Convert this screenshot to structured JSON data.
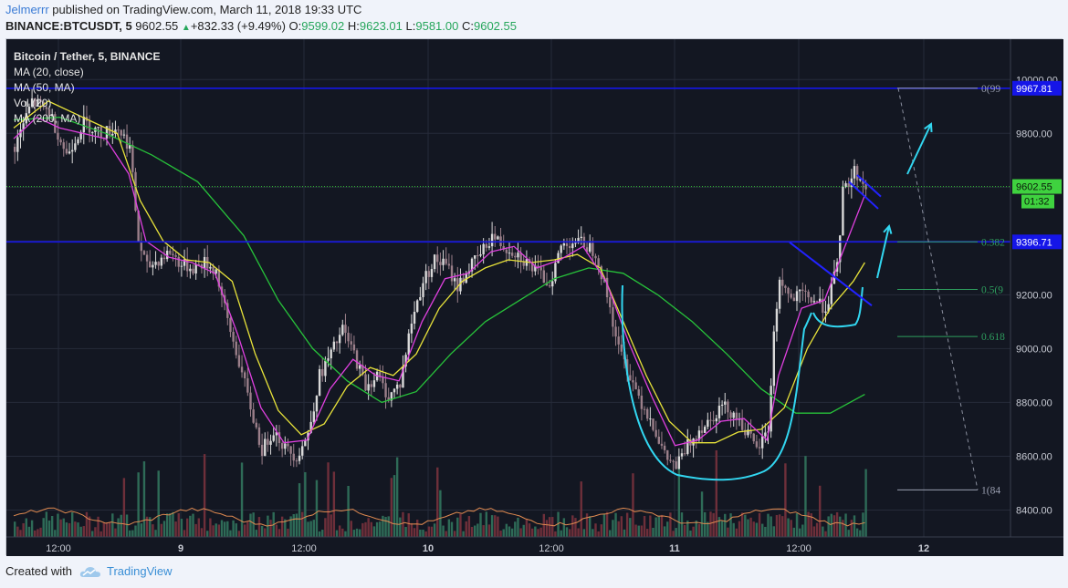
{
  "header": {
    "author": "Jelmerrr",
    "published": " published on TradingView.com, March 11, 2018 19:33 UTC",
    "symbol": "BINANCE:BTCUSDT, 5",
    "last": "9602.55",
    "change_arrow": "▲",
    "change": "+832.33 (+9.49%)",
    "o_label": "O:",
    "o_value": "9599.02",
    "h_label": "H:",
    "h_value": "9623.01",
    "l_label": "L:",
    "l_value": "9581.00",
    "c_label": "C:",
    "c_value": "9602.55"
  },
  "legend": {
    "title": "Bitcoin / Tether, 5, BINANCE",
    "items": [
      "MA (20, close)",
      "MA (50, MA)",
      "Vol (20)",
      "MA (200, MA)"
    ]
  },
  "footer": {
    "created_with": "Created with",
    "brand": "TradingView"
  },
  "colors": {
    "background": "#131722",
    "grid": "#262b3a",
    "up": "#d9d9d9",
    "down": "#9b7f8a",
    "ma20": "#e040e0",
    "ma50": "#e8e33a",
    "ma200": "#27c23a",
    "cup": "#32d6f0",
    "hline": "#1515e8",
    "price_line": "#37c837",
    "fib": "#2e9e5e",
    "vol_ma": "#e08a50"
  },
  "chart_data": {
    "type": "candlestick",
    "symbol": "BTCUSDT",
    "exchange": "BINANCE",
    "timeframe": "5",
    "x_ticks": [
      "12:00",
      "9",
      "12:00",
      "10",
      "12:00",
      "11",
      "12:00",
      "12"
    ],
    "y_ticks": [
      8400,
      8600,
      8800,
      9000,
      9200,
      9400,
      9600,
      9800,
      10000
    ],
    "y_range": [
      8300,
      10150
    ],
    "price_path": [
      [
        0,
        9750
      ],
      [
        3,
        9920
      ],
      [
        6,
        9880
      ],
      [
        9,
        9720
      ],
      [
        12,
        9840
      ],
      [
        15,
        9800
      ],
      [
        18,
        9820
      ],
      [
        20,
        9750
      ],
      [
        21.5,
        9400
      ],
      [
        23,
        9300
      ],
      [
        25,
        9330
      ],
      [
        27,
        9360
      ],
      [
        29,
        9310
      ],
      [
        31,
        9300
      ],
      [
        33,
        9320
      ],
      [
        35,
        9290
      ],
      [
        37,
        9100
      ],
      [
        39,
        8950
      ],
      [
        41,
        8780
      ],
      [
        43,
        8620
      ],
      [
        45,
        8700
      ],
      [
        47,
        8630
      ],
      [
        49,
        8600
      ],
      [
        51,
        8680
      ],
      [
        53,
        8900
      ],
      [
        55,
        8980
      ],
      [
        57,
        9070
      ],
      [
        59,
        8980
      ],
      [
        61,
        8860
      ],
      [
        63,
        8900
      ],
      [
        65,
        8820
      ],
      [
        67,
        8870
      ],
      [
        69,
        9100
      ],
      [
        71,
        9250
      ],
      [
        73,
        9330
      ],
      [
        75,
        9310
      ],
      [
        77,
        9230
      ],
      [
        79,
        9300
      ],
      [
        81,
        9350
      ],
      [
        83,
        9420
      ],
      [
        85,
        9380
      ],
      [
        87,
        9360
      ],
      [
        89,
        9320
      ],
      [
        91,
        9280
      ],
      [
        93,
        9240
      ],
      [
        95,
        9380
      ],
      [
        97,
        9400
      ],
      [
        99,
        9390
      ],
      [
        101,
        9360
      ],
      [
        103,
        9200
      ],
      [
        105,
        9000
      ],
      [
        107,
        8900
      ],
      [
        109,
        8800
      ],
      [
        111,
        8720
      ],
      [
        113,
        8600
      ],
      [
        115,
        8560
      ],
      [
        117,
        8640
      ],
      [
        119,
        8700
      ],
      [
        121,
        8740
      ],
      [
        123,
        8790
      ],
      [
        125,
        8760
      ],
      [
        127,
        8700
      ],
      [
        129,
        8620
      ],
      [
        131,
        8700
      ],
      [
        132,
        9050
      ],
      [
        133,
        9260
      ],
      [
        135,
        9180
      ],
      [
        137,
        9200
      ],
      [
        139,
        9180
      ],
      [
        141,
        9150
      ],
      [
        143,
        9300
      ],
      [
        144,
        9580
      ],
      [
        146,
        9660
      ],
      [
        148,
        9600
      ]
    ],
    "ma20_points": [
      [
        0,
        9780
      ],
      [
        4,
        9860
      ],
      [
        8,
        9820
      ],
      [
        12,
        9800
      ],
      [
        16,
        9780
      ],
      [
        20,
        9650
      ],
      [
        23,
        9400
      ],
      [
        27,
        9340
      ],
      [
        31,
        9320
      ],
      [
        35,
        9280
      ],
      [
        39,
        9050
      ],
      [
        43,
        8780
      ],
      [
        47,
        8650
      ],
      [
        51,
        8660
      ],
      [
        55,
        8850
      ],
      [
        59,
        8960
      ],
      [
        63,
        8900
      ],
      [
        67,
        8880
      ],
      [
        71,
        9100
      ],
      [
        75,
        9260
      ],
      [
        79,
        9280
      ],
      [
        83,
        9360
      ],
      [
        87,
        9380
      ],
      [
        91,
        9300
      ],
      [
        95,
        9330
      ],
      [
        99,
        9380
      ],
      [
        103,
        9250
      ],
      [
        107,
        9020
      ],
      [
        111,
        8820
      ],
      [
        115,
        8640
      ],
      [
        119,
        8660
      ],
      [
        123,
        8730
      ],
      [
        127,
        8740
      ],
      [
        131,
        8660
      ],
      [
        133,
        8900
      ],
      [
        137,
        9150
      ],
      [
        141,
        9180
      ],
      [
        144,
        9350
      ],
      [
        148,
        9570
      ]
    ],
    "ma50_points": [
      [
        0,
        9820
      ],
      [
        6,
        9920
      ],
      [
        12,
        9860
      ],
      [
        18,
        9800
      ],
      [
        22,
        9550
      ],
      [
        26,
        9400
      ],
      [
        30,
        9330
      ],
      [
        34,
        9320
      ],
      [
        38,
        9250
      ],
      [
        42,
        8980
      ],
      [
        46,
        8770
      ],
      [
        50,
        8680
      ],
      [
        54,
        8720
      ],
      [
        58,
        8860
      ],
      [
        62,
        8930
      ],
      [
        66,
        8900
      ],
      [
        70,
        8980
      ],
      [
        74,
        9150
      ],
      [
        78,
        9250
      ],
      [
        82,
        9300
      ],
      [
        86,
        9330
      ],
      [
        90,
        9320
      ],
      [
        94,
        9330
      ],
      [
        98,
        9350
      ],
      [
        102,
        9300
      ],
      [
        106,
        9100
      ],
      [
        110,
        8900
      ],
      [
        114,
        8730
      ],
      [
        118,
        8650
      ],
      [
        122,
        8650
      ],
      [
        126,
        8690
      ],
      [
        130,
        8700
      ],
      [
        134,
        8780
      ],
      [
        138,
        9000
      ],
      [
        142,
        9150
      ],
      [
        146,
        9250
      ],
      [
        148,
        9320
      ]
    ],
    "ma200_points": [
      [
        0,
        9850
      ],
      [
        8,
        9860
      ],
      [
        16,
        9800
      ],
      [
        24,
        9720
      ],
      [
        32,
        9620
      ],
      [
        40,
        9420
      ],
      [
        46,
        9180
      ],
      [
        52,
        9000
      ],
      [
        58,
        8880
      ],
      [
        64,
        8800
      ],
      [
        70,
        8840
      ],
      [
        76,
        8980
      ],
      [
        82,
        9100
      ],
      [
        88,
        9180
      ],
      [
        94,
        9260
      ],
      [
        100,
        9300
      ],
      [
        106,
        9280
      ],
      [
        112,
        9200
      ],
      [
        118,
        9100
      ],
      [
        124,
        8980
      ],
      [
        130,
        8850
      ],
      [
        136,
        8760
      ],
      [
        142,
        8760
      ],
      [
        148,
        8830
      ]
    ],
    "horizontal_lines": [
      {
        "price": 9967.81,
        "label": "9967.81",
        "color": "#1515e8"
      },
      {
        "price": 9396.71,
        "label": "9396.71",
        "color": "#1515e8"
      },
      {
        "price": 9602.55,
        "label": "9602.55",
        "color": "#37c837",
        "dotted": true,
        "countdown": "01:32"
      }
    ],
    "fib_levels": [
      {
        "price": 9967.81,
        "label": "0(99"
      },
      {
        "price": 9396.71,
        "label": "0.382"
      },
      {
        "price": 9220,
        "label": "0.5(9"
      },
      {
        "price": 9045,
        "label": "0.618"
      },
      {
        "price": 8475,
        "label": "1(84"
      }
    ]
  }
}
